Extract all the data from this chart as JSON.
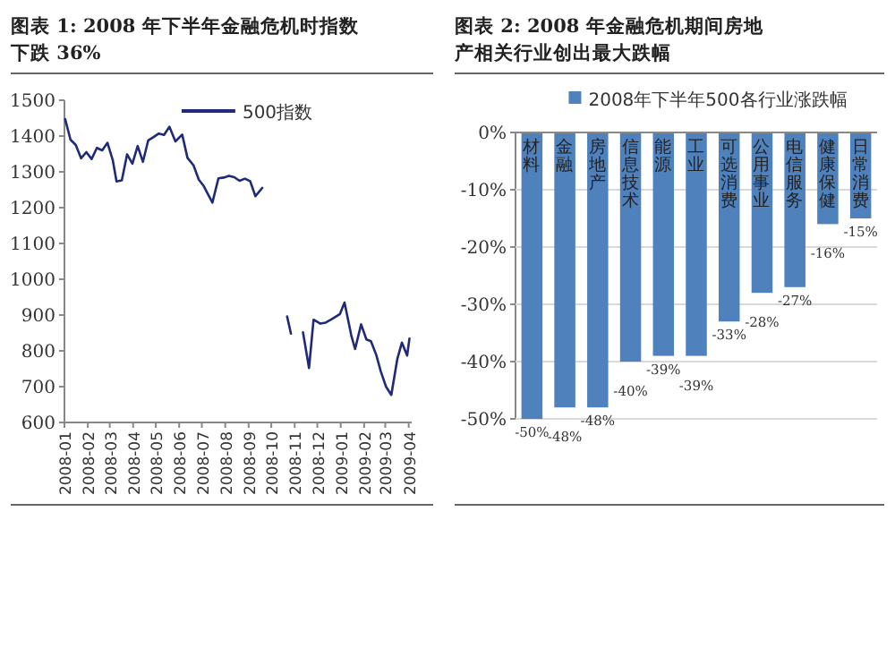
{
  "chart_data": [
    {
      "type": "line",
      "title": "图表 1: 2008 年下半年金融危机时指数下跌 36%",
      "legend": "top",
      "series": [
        {
          "name": "500指数",
          "color": "#1f2a78",
          "x": [
            "2008-01-02",
            "2008-01-09",
            "2008-01-16",
            "2008-01-23",
            "2008-01-30",
            "2008-02-06",
            "2008-02-13",
            "2008-02-20",
            "2008-02-27",
            "2008-03-05",
            "2008-03-10",
            "2008-03-17",
            "2008-03-24",
            "2008-03-31",
            "2008-04-07",
            "2008-04-14",
            "2008-04-21",
            "2008-04-28",
            "2008-05-05",
            "2008-05-12",
            "2008-05-19",
            "2008-05-27",
            "2008-06-05",
            "2008-06-12",
            "2008-06-20",
            "2008-06-27",
            "2008-07-03",
            "2008-07-15",
            "2008-07-23",
            "2008-07-30",
            "2008-08-06",
            "2008-08-13",
            "2008-08-20",
            "2008-08-27",
            "2008-09-03",
            "2008-09-10",
            "2008-09-19",
            "2008-09-29",
            "2008-10-06",
            "2008-10-13",
            "2008-10-22",
            "2008-10-27",
            "2008-11-04",
            "2008-11-12",
            "2008-11-20",
            "2008-11-26",
            "2008-12-05",
            "2008-12-12",
            "2008-12-19",
            "2008-12-31",
            "2009-01-06",
            "2009-01-15",
            "2009-01-20",
            "2009-01-28",
            "2009-02-04",
            "2009-02-10",
            "2009-02-17",
            "2009-02-23",
            "2009-03-02",
            "2009-03-09",
            "2009-03-17",
            "2009-03-23",
            "2009-03-30",
            "2009-04-02"
          ],
          "values": [
            1447,
            1390,
            1375,
            1338,
            1355,
            1336,
            1367,
            1360,
            1381,
            1333,
            1273,
            1276,
            1349,
            1323,
            1372,
            1328,
            1388,
            1397,
            1407,
            1403,
            1426,
            1385,
            1404,
            1339,
            1318,
            1278,
            1262,
            1214,
            1282,
            1284,
            1289,
            1285,
            1275,
            1281,
            1274,
            1232,
            1255,
            null,
            null,
            null,
            896,
            848,
            null,
            852,
            752,
            887,
            876,
            879,
            887,
            903,
            935,
            843,
            805,
            874,
            832,
            827,
            789,
            743,
            700,
            677,
            778,
            823,
            787,
            834
          ]
        }
      ],
      "xlim": [
        "2008-01-01",
        "2009-04-05"
      ],
      "xticks": [
        "2008-01",
        "2008-02",
        "2008-03",
        "2008-04",
        "2008-05",
        "2008-06",
        "2008-07",
        "2008-08",
        "2008-09",
        "2008-10",
        "2008-11",
        "2008-12",
        "2009-01",
        "2009-02",
        "2009-03",
        "2009-04"
      ],
      "ylim": [
        600,
        1500
      ],
      "yticks": [
        600,
        700,
        800,
        900,
        1000,
        1100,
        1200,
        1300,
        1400,
        1500
      ]
    },
    {
      "type": "bar",
      "title": "图表  2:  2008 年金融危机期间房地产相关行业创出最大跌幅",
      "legend": "top",
      "grid": "y",
      "categories": [
        "材料",
        "金融",
        "房地产",
        "信息技术",
        "能源",
        "工业",
        "可选消费",
        "公用事业",
        "电信服务",
        "健康保健",
        "日常消费"
      ],
      "series": [
        {
          "name": "2008年下半年500各行业涨跌幅",
          "color": "#4f81bd",
          "values": [
            -50,
            -48,
            -48,
            -40,
            -39,
            -39,
            -33,
            -28,
            -27,
            -16,
            -15
          ],
          "value_labels": [
            "-50%",
            "-48%",
            "-48%",
            "-40%",
            "-39%",
            "-39%",
            "-33%",
            "-28%",
            "-27%",
            "-16%",
            "-15%"
          ]
        }
      ],
      "ylim": [
        -50,
        0
      ],
      "yticks": [
        {
          "value": 0,
          "label": "0%"
        },
        {
          "value": -10,
          "label": "-10%"
        },
        {
          "value": -20,
          "label": "-20%"
        },
        {
          "value": -30,
          "label": "-30%"
        },
        {
          "value": -40,
          "label": "-40%"
        },
        {
          "value": -50,
          "label": "-50%"
        }
      ]
    }
  ]
}
